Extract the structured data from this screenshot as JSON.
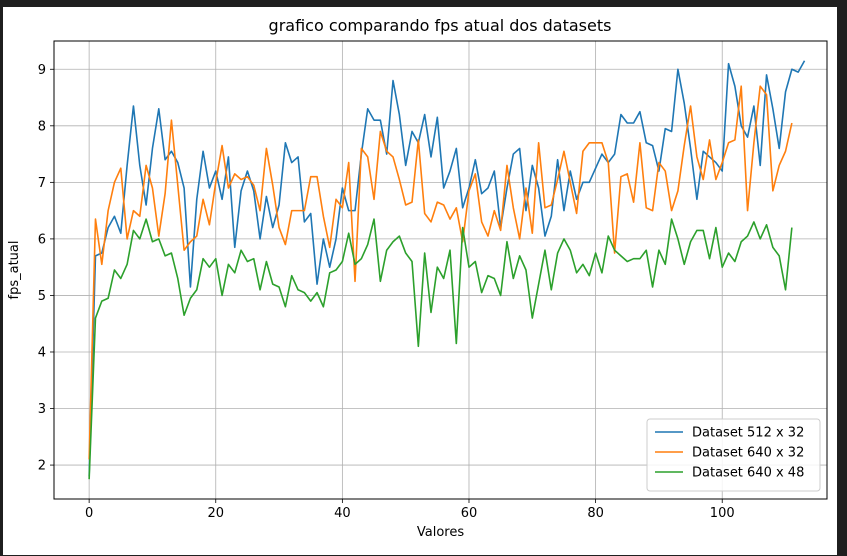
{
  "chart_data": {
    "type": "line",
    "title": "grafico comparando fps atual dos datasets",
    "xlabel": "Valores",
    "ylabel": "fps_atual",
    "xlim": [
      -5.55,
      116.55
    ],
    "ylim": [
      1.4,
      9.5
    ],
    "xticks": [
      0,
      20,
      40,
      60,
      80,
      100
    ],
    "yticks": [
      2,
      3,
      4,
      5,
      6,
      7,
      8,
      9
    ],
    "grid": true,
    "legend_position": "lower-right",
    "series": [
      {
        "name": "Dataset 512 x 32",
        "color": "#1f77b4",
        "values": [
          1.8,
          5.7,
          5.75,
          6.2,
          6.4,
          6.1,
          7.3,
          8.35,
          7.3,
          6.6,
          7.6,
          8.3,
          7.4,
          7.55,
          7.35,
          6.9,
          5.15,
          6.7,
          7.55,
          6.9,
          7.2,
          6.7,
          7.45,
          5.85,
          6.85,
          7.2,
          6.85,
          6.0,
          6.75,
          6.2,
          6.6,
          7.7,
          7.35,
          7.45,
          6.3,
          6.45,
          5.2,
          6.0,
          5.5,
          6.0,
          6.9,
          6.5,
          6.5,
          7.5,
          8.3,
          8.1,
          8.1,
          7.5,
          8.8,
          8.2,
          7.3,
          7.9,
          7.7,
          8.2,
          7.45,
          8.15,
          6.9,
          7.2,
          7.6,
          6.55,
          6.9,
          7.4,
          6.8,
          6.9,
          7.2,
          6.2,
          6.9,
          7.5,
          7.6,
          6.5,
          7.3,
          6.9,
          6.05,
          6.4,
          7.4,
          6.5,
          7.2,
          6.7,
          7.0,
          7.0,
          7.25,
          7.5,
          7.35,
          7.5,
          8.2,
          8.05,
          8.05,
          8.25,
          7.7,
          7.65,
          7.2,
          7.95,
          7.9,
          9.0,
          8.4,
          7.6,
          6.7,
          7.55,
          7.45,
          7.35,
          7.2,
          9.1,
          8.7,
          8.0,
          7.8,
          8.35,
          7.3,
          8.9,
          8.3,
          7.6,
          8.6,
          9.0,
          8.95,
          9.15
        ]
      },
      {
        "name": "Dataset 640 x 32",
        "color": "#ff7f0e",
        "values": [
          2.1,
          6.35,
          5.55,
          6.5,
          7.0,
          7.25,
          6.0,
          6.5,
          6.4,
          7.3,
          6.9,
          6.05,
          6.8,
          8.1,
          6.95,
          5.8,
          5.95,
          6.05,
          6.7,
          6.25,
          7.0,
          7.65,
          6.9,
          7.15,
          7.05,
          7.1,
          6.95,
          6.5,
          7.6,
          6.95,
          6.2,
          5.9,
          6.5,
          6.5,
          6.5,
          7.1,
          7.1,
          6.4,
          5.85,
          6.7,
          6.55,
          7.35,
          5.25,
          7.6,
          7.45,
          6.7,
          7.9,
          7.55,
          7.45,
          7.05,
          6.6,
          6.65,
          7.75,
          6.45,
          6.3,
          6.65,
          6.6,
          6.35,
          6.55,
          5.95,
          6.85,
          7.15,
          6.3,
          6.05,
          6.5,
          6.15,
          7.3,
          6.55,
          6.0,
          6.9,
          6.1,
          7.7,
          6.55,
          6.6,
          7.05,
          7.55,
          7.0,
          6.45,
          7.55,
          7.7,
          7.7,
          7.7,
          7.35,
          5.75,
          7.1,
          7.15,
          6.65,
          7.7,
          6.55,
          6.5,
          7.35,
          7.2,
          6.5,
          6.85,
          7.65,
          8.35,
          7.45,
          7.05,
          7.75,
          7.05,
          7.35,
          7.7,
          7.75,
          8.7,
          6.5,
          7.7,
          8.7,
          8.55,
          6.85,
          7.3,
          7.55,
          8.05
        ]
      },
      {
        "name": "Dataset 640 x 48",
        "color": "#2ca02c",
        "values": [
          1.75,
          4.6,
          4.9,
          4.95,
          5.45,
          5.3,
          5.55,
          6.15,
          6.0,
          6.35,
          5.95,
          6.0,
          5.7,
          5.75,
          5.3,
          4.65,
          4.95,
          5.1,
          5.65,
          5.5,
          5.65,
          5.0,
          5.55,
          5.4,
          5.8,
          5.6,
          5.65,
          5.1,
          5.6,
          5.2,
          5.15,
          4.8,
          5.35,
          5.1,
          5.05,
          4.9,
          5.05,
          4.8,
          5.4,
          5.45,
          5.6,
          6.1,
          5.55,
          5.65,
          5.9,
          6.35,
          5.25,
          5.8,
          5.95,
          6.05,
          5.75,
          5.6,
          4.1,
          5.75,
          4.7,
          5.5,
          5.3,
          5.8,
          4.15,
          6.2,
          5.5,
          5.6,
          5.05,
          5.35,
          5.3,
          5.0,
          5.95,
          5.3,
          5.7,
          5.45,
          4.6,
          5.2,
          5.8,
          5.1,
          5.75,
          6.0,
          5.8,
          5.4,
          5.55,
          5.35,
          5.75,
          5.4,
          6.05,
          5.8,
          5.7,
          5.6,
          5.65,
          5.65,
          5.8,
          5.15,
          5.8,
          5.55,
          6.35,
          6.0,
          5.55,
          5.95,
          6.15,
          6.15,
          5.65,
          6.2,
          5.5,
          5.75,
          5.6,
          5.95,
          6.05,
          6.3,
          6.0,
          6.25,
          5.85,
          5.7,
          5.1,
          6.2
        ]
      }
    ]
  }
}
